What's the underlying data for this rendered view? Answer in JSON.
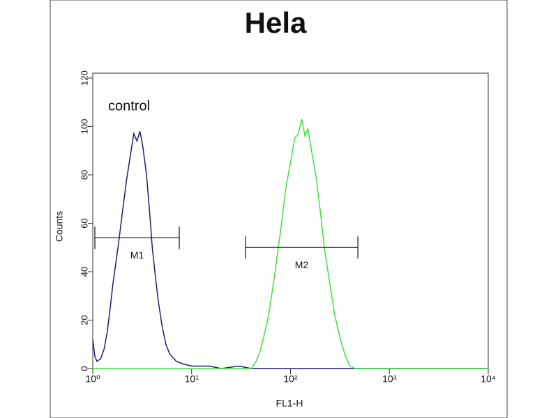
{
  "chart_data": {
    "type": "line",
    "title": "Hela",
    "x_label": "FL1-H",
    "y_label": "Counts",
    "log_x": true,
    "xlim": [
      1,
      10000
    ],
    "xticks": [
      {
        "value": 1,
        "label": "10⁰"
      },
      {
        "value": 10,
        "label": "10¹"
      },
      {
        "value": 100,
        "label": "10²"
      },
      {
        "value": 1000,
        "label": "10³"
      },
      {
        "value": 10000,
        "label": "10⁴"
      }
    ],
    "ylim": [
      0,
      120
    ],
    "yticks": [
      0,
      20,
      40,
      60,
      80,
      100,
      120
    ],
    "series": [
      {
        "name": "control",
        "color": "#1a1f6e",
        "x": [
          1.0,
          1.05,
          1.1,
          1.2,
          1.3,
          1.4,
          1.5,
          1.6,
          1.8,
          2.0,
          2.2,
          2.4,
          2.6,
          2.8,
          3.0,
          3.2,
          3.5,
          3.8,
          4.0,
          4.3,
          4.6,
          5.0,
          5.5,
          6.0,
          7,
          8,
          10,
          15,
          20,
          30,
          40,
          10000
        ],
        "values": [
          12,
          5,
          3,
          4,
          8,
          15,
          25,
          35,
          50,
          65,
          78,
          88,
          97,
          94,
          98,
          92,
          80,
          62,
          50,
          38,
          28,
          18,
          10,
          6,
          3,
          2,
          1,
          1,
          0,
          1,
          0,
          0
        ]
      },
      {
        "color": "#3fe03f",
        "x": [
          1,
          40,
          45,
          50,
          55,
          60,
          70,
          80,
          90,
          100,
          110,
          120,
          130,
          140,
          150,
          160,
          180,
          200,
          220,
          250,
          280,
          320,
          360,
          400,
          450,
          10000
        ],
        "values": [
          0,
          0,
          3,
          8,
          15,
          22,
          40,
          58,
          75,
          85,
          95,
          97,
          103,
          96,
          99,
          92,
          80,
          65,
          50,
          35,
          22,
          12,
          5,
          1,
          0,
          0
        ]
      }
    ],
    "gates": [
      {
        "label": "M1",
        "range": [
          1.05,
          7.5
        ],
        "y": 54
      },
      {
        "label": "M2",
        "range": [
          35,
          480
        ],
        "y": 50
      }
    ]
  }
}
